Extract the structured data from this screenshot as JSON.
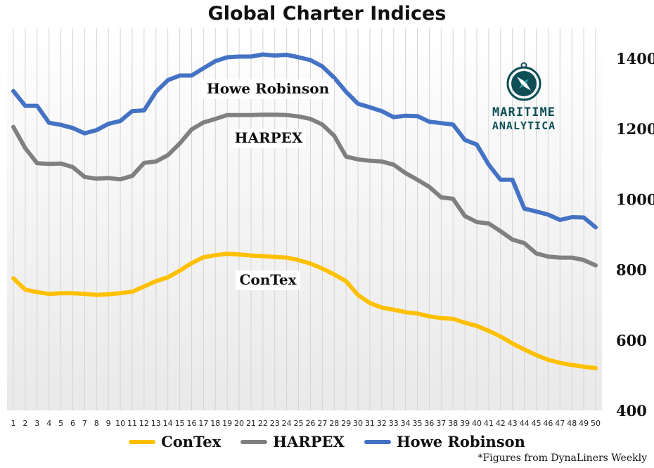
{
  "chart_data": {
    "type": "line",
    "title": "Global Charter Indices",
    "x": [
      1,
      2,
      3,
      4,
      5,
      6,
      7,
      8,
      9,
      10,
      11,
      12,
      13,
      14,
      15,
      16,
      17,
      18,
      19,
      20,
      21,
      22,
      23,
      24,
      25,
      26,
      27,
      28,
      29,
      30,
      31,
      32,
      33,
      34,
      35,
      36,
      37,
      38,
      39,
      40,
      41,
      42,
      43,
      44,
      45,
      46,
      47,
      48,
      49,
      50
    ],
    "ylim": [
      400,
      1450
    ],
    "yticks": [
      "400",
      "600",
      "800",
      "1000",
      "1200",
      "1400"
    ],
    "yaxis_position": "right",
    "grid": "vertical",
    "legend_position": "bottom",
    "series": [
      {
        "name": "ConTex",
        "color": "#FFC000",
        "values": [
          775,
          743,
          736,
          731,
          733,
          733,
          731,
          728,
          730,
          733,
          737,
          752,
          767,
          778,
          797,
          818,
          835,
          841,
          845,
          843,
          840,
          838,
          836,
          834,
          827,
          817,
          803,
          786,
          767,
          728,
          705,
          692,
          686,
          679,
          675,
          667,
          662,
          660,
          649,
          640,
          626,
          610,
          590,
          573,
          557,
          544,
          535,
          529,
          524,
          520
        ]
      },
      {
        "name": "HARPEX",
        "color": "#808080",
        "values": [
          1205,
          1145,
          1102,
          1100,
          1101,
          1091,
          1063,
          1058,
          1060,
          1056,
          1066,
          1103,
          1107,
          1125,
          1158,
          1198,
          1218,
          1228,
          1239,
          1239,
          1239,
          1240,
          1240,
          1239,
          1235,
          1228,
          1212,
          1180,
          1121,
          1113,
          1109,
          1107,
          1098,
          1074,
          1055,
          1035,
          1005,
          1001,
          952,
          935,
          931,
          909,
          885,
          875,
          846,
          837,
          834,
          834,
          827,
          812
        ]
      },
      {
        "name": "Howe Robinson",
        "color": "#4472C4",
        "values": [
          1307,
          1265,
          1265,
          1217,
          1211,
          1202,
          1187,
          1196,
          1214,
          1222,
          1250,
          1252,
          1305,
          1338,
          1351,
          1351,
          1372,
          1392,
          1403,
          1405,
          1405,
          1411,
          1408,
          1410,
          1403,
          1395,
          1377,
          1345,
          1305,
          1271,
          1261,
          1250,
          1233,
          1237,
          1236,
          1220,
          1216,
          1212,
          1168,
          1155,
          1098,
          1055,
          1055,
          973,
          965,
          956,
          941,
          949,
          948,
          920
        ]
      }
    ],
    "series_labels": [
      "Howe Robinson",
      "HARPEX",
      "ConTex"
    ]
  },
  "logo": {
    "icon": "compass-icon",
    "line1": "MARITIME",
    "line2": "ANALYTICA"
  },
  "note": "*Figures  from DynaLiners Weekly"
}
